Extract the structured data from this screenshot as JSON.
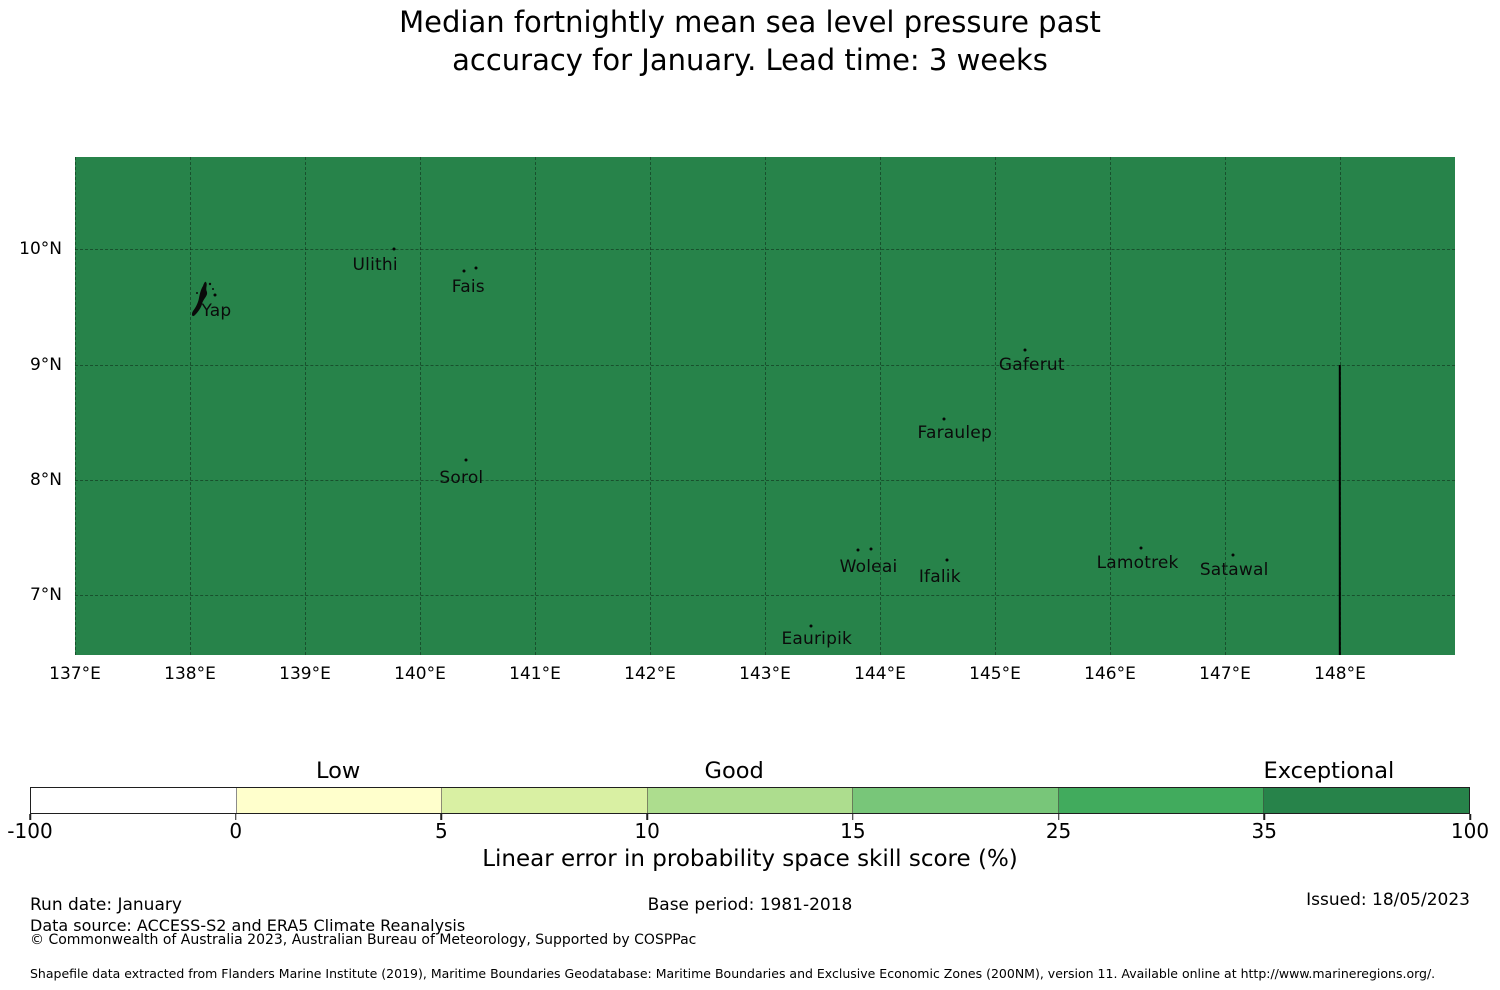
{
  "chart_data": {
    "type": "heatmap",
    "title_line1": "Median fortnightly mean sea level pressure past",
    "title_line2": "accuracy for January. Lead time: 3 weeks",
    "map": {
      "fill_color": "#27834a",
      "extent": {
        "lon_min": 137.0,
        "lon_max": 149.0,
        "lat_min": 6.48,
        "lat_max": 10.8
      },
      "field_note": "uniform skill value in the 35-100 bin across the whole shown region",
      "gridline_lons": [
        137,
        138,
        139,
        140,
        141,
        142,
        143,
        144,
        145,
        146,
        147,
        148
      ],
      "gridline_lats": [
        7,
        8,
        9,
        10
      ],
      "eez_boundary": {
        "lon": 148.0,
        "lat_from": 6.48,
        "lat_to": 9.0
      }
    },
    "x_axis": {
      "ticks": [
        {
          "lon": 137,
          "label": "137°E"
        },
        {
          "lon": 138,
          "label": "138°E"
        },
        {
          "lon": 139,
          "label": "139°E"
        },
        {
          "lon": 140,
          "label": "140°E"
        },
        {
          "lon": 141,
          "label": "141°E"
        },
        {
          "lon": 142,
          "label": "142°E"
        },
        {
          "lon": 143,
          "label": "143°E"
        },
        {
          "lon": 144,
          "label": "144°E"
        },
        {
          "lon": 145,
          "label": "145°E"
        },
        {
          "lon": 146,
          "label": "146°E"
        },
        {
          "lon": 147,
          "label": "147°E"
        },
        {
          "lon": 148,
          "label": "148°E"
        }
      ]
    },
    "y_axis": {
      "ticks": [
        {
          "lat": 10,
          "label": "10°N"
        },
        {
          "lat": 9,
          "label": "9°N"
        },
        {
          "lat": 8,
          "label": "8°N"
        },
        {
          "lat": 7,
          "label": "7°N"
        }
      ]
    },
    "islands": [
      {
        "name": "Yap",
        "label_lon": 138.23,
        "label_lat": 9.465,
        "dots": [
          [
            138.22,
            9.6
          ]
        ],
        "shape": "blob",
        "blob_lon": 138.12,
        "blob_lat": 9.53
      },
      {
        "name": "Ulithi",
        "label_lon": 139.61,
        "label_lat": 9.86,
        "dots": [
          [
            139.77,
            10.005
          ]
        ]
      },
      {
        "name": "Fais",
        "label_lon": 140.42,
        "label_lat": 9.675,
        "dots": [
          [
            140.38,
            9.81
          ],
          [
            140.49,
            9.84
          ]
        ]
      },
      {
        "name": "Sorol",
        "label_lon": 140.36,
        "label_lat": 8.015,
        "dots": [
          [
            140.4,
            8.17
          ]
        ]
      },
      {
        "name": "Gaferut",
        "label_lon": 145.32,
        "label_lat": 9.0,
        "dots": [
          [
            145.26,
            9.13
          ]
        ]
      },
      {
        "name": "Faraulep",
        "label_lon": 144.65,
        "label_lat": 8.405,
        "dots": [
          [
            144.56,
            8.53
          ]
        ]
      },
      {
        "name": "Woleai",
        "label_lon": 143.9,
        "label_lat": 7.245,
        "dots": [
          [
            143.81,
            7.39
          ],
          [
            143.92,
            7.4
          ]
        ]
      },
      {
        "name": "Ifalik",
        "label_lon": 144.52,
        "label_lat": 7.155,
        "dots": [
          [
            144.58,
            7.3
          ]
        ]
      },
      {
        "name": "Lamotrek",
        "label_lon": 146.24,
        "label_lat": 7.275,
        "dots": [
          [
            146.27,
            7.41
          ]
        ]
      },
      {
        "name": "Satawal",
        "label_lon": 147.08,
        "label_lat": 7.215,
        "dots": [
          [
            147.07,
            7.35
          ]
        ]
      },
      {
        "name": "Eauripik",
        "label_lon": 143.45,
        "label_lat": 6.615,
        "dots": [
          [
            143.4,
            6.73
          ]
        ]
      }
    ],
    "colorbar": {
      "levels": [
        -100,
        0,
        5,
        10,
        15,
        25,
        35,
        100
      ],
      "tick_labels": [
        "-100",
        "0",
        "5",
        "10",
        "15",
        "25",
        "35",
        "100"
      ],
      "segment_colors": [
        "#ffffff",
        "#ffffcc",
        "#d9f0a3",
        "#addd8e",
        "#78c679",
        "#41ab5d",
        "#27834a"
      ],
      "categories": [
        {
          "label": "Low",
          "center_pct": 21.4
        },
        {
          "label": "Good",
          "center_pct": 48.9
        },
        {
          "label": "Exceptional",
          "center_pct": 90.2
        }
      ],
      "axis_label": "Linear error in probability space skill score (%)"
    }
  },
  "footer": {
    "run_date": "Run date: January",
    "base_period": "Base period: 1981-2018",
    "issued": "Issued: 18/05/2023",
    "data_source": "Data source: ACCESS-S2 and ERA5 Climate Reanalysis",
    "copyright": "© Commonwealth of Australia 2023, Australian Bureau of Meteorology, Supported by COSPPac",
    "shapefile_note": "Shapefile data extracted from Flanders Marine Institute (2019), Maritime Boundaries Geodatabase: Maritime Boundaries and Exclusive Economic Zones (200NM), version 11. Available online at http://www.marineregions.org/."
  }
}
